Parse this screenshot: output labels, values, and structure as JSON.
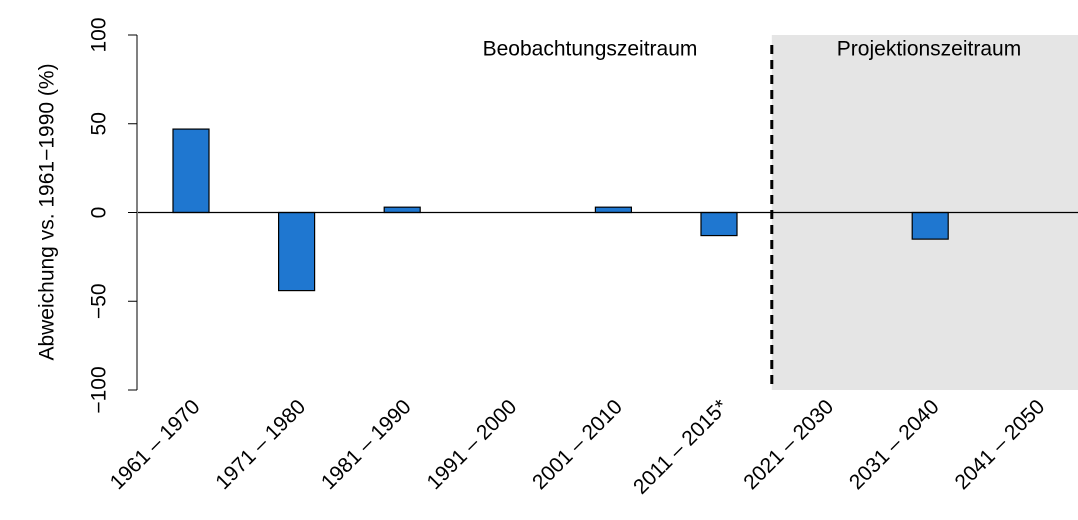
{
  "chart_data": {
    "type": "bar",
    "y_label": "Abweichung vs. 1961−1990 (%)",
    "annotations": [
      "Beobachtungszeitraum",
      "Projektionszeitraum"
    ],
    "categories": [
      "1961 – 1970",
      "1971 – 1980",
      "1981 – 1990",
      "1991 – 2000",
      "2001 – 2010",
      "2011 – 2015*",
      "2021 – 2030",
      "2031 – 2040",
      "2041 – 2050"
    ],
    "values": [
      47,
      -44,
      3,
      0,
      3,
      -13,
      0,
      -15,
      0
    ],
    "color": "#1f77d0",
    "ylim": [
      -100,
      100
    ],
    "yticks": [
      {
        "value": -100,
        "label": "−100"
      },
      {
        "value": -50,
        "label": "−50"
      },
      0,
      50,
      100
    ]
  }
}
